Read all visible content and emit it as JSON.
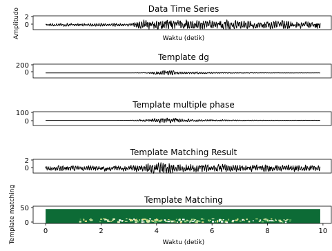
{
  "chart_data": [
    {
      "type": "line",
      "title": "Data Time Series",
      "xlabel": "Waktu (detik)",
      "ylabel": "Amplitudo",
      "yticks": [
        "2",
        "0"
      ],
      "ylim": [
        -1.2,
        2.2
      ],
      "xlim": [
        -0.45,
        10.3
      ],
      "series": [
        {
          "x_start": 0,
          "x_end": 9.9,
          "envelope": [
            0.2,
            0.25,
            0.28,
            0.26,
            0.22,
            0.24,
            0.26,
            0.3,
            0.32,
            0.28,
            0.26,
            0.34,
            0.85,
            0.95,
            1.0,
            0.92,
            0.9,
            0.95,
            0.96,
            0.9,
            0.86,
            0.8,
            0.84,
            0.86,
            0.82,
            0.78,
            0.8,
            0.78,
            0.75,
            0.74,
            0.76,
            0.72,
            0.7,
            0.7,
            0.68,
            0.66
          ]
        }
      ]
    },
    {
      "type": "line",
      "title": "Template dg",
      "xlabel": "",
      "ylabel": "",
      "yticks": [
        "200",
        "0"
      ],
      "ylim": [
        -120,
        210
      ],
      "xlim": [
        -0.45,
        10.3
      ],
      "series": [
        {
          "x_start": 0,
          "x_end": 9.9,
          "envelope": [
            0.0,
            0.0,
            0.0,
            0.0,
            0.0,
            0.0,
            0.0,
            0.0,
            0.0,
            0.0,
            0.01,
            0.02,
            0.08,
            0.1,
            0.6,
            1.0,
            0.85,
            0.45,
            0.4,
            0.35,
            0.3,
            0.26,
            0.2,
            0.18,
            0.14,
            0.12,
            0.1,
            0.09,
            0.08,
            0.07,
            0.06,
            0.05,
            0.05,
            0.04,
            0.03,
            0.03
          ]
        }
      ]
    },
    {
      "type": "line",
      "title": "Template multiple phase",
      "xlabel": "",
      "ylabel": "",
      "yticks": [
        "100",
        "0"
      ],
      "ylim": [
        -65,
        110
      ],
      "xlim": [
        -0.45,
        10.3
      ],
      "series": [
        {
          "x_start": 0,
          "x_end": 9.9,
          "envelope": [
            0.0,
            0.0,
            0.0,
            0.0,
            0.0,
            0.0,
            0.0,
            0.0,
            0.0,
            0.0,
            0.04,
            0.1,
            0.3,
            0.5,
            0.75,
            0.9,
            1.0,
            0.7,
            0.5,
            0.45,
            0.4,
            0.3,
            0.28,
            0.22,
            0.18,
            0.15,
            0.12,
            0.1,
            0.09,
            0.08,
            0.07,
            0.06,
            0.05,
            0.05,
            0.04,
            0.04
          ]
        }
      ]
    },
    {
      "type": "line",
      "title": "Template Matching Result",
      "xlabel": "",
      "ylabel": "",
      "yticks": [
        "2",
        "0"
      ],
      "ylim": [
        -1.2,
        2.2
      ],
      "xlim": [
        -0.45,
        10.3
      ],
      "series": [
        {
          "x_start": 0,
          "x_end": 9.9,
          "envelope": [
            0.4,
            0.45,
            0.5,
            0.48,
            0.46,
            0.5,
            0.52,
            0.5,
            0.55,
            0.52,
            0.55,
            0.6,
            0.75,
            0.85,
            0.95,
            0.9,
            1.0,
            0.85,
            0.75,
            0.8,
            0.72,
            0.7,
            0.74,
            0.7,
            0.68,
            0.7,
            0.66,
            0.64,
            0.68,
            0.65,
            0.62,
            0.6,
            0.62,
            0.58,
            0.56,
            0.55
          ]
        }
      ]
    },
    {
      "type": "heatmap",
      "title": "Template Matching",
      "xlabel": "Waktu (detik)",
      "ylabel": "Template matching",
      "yticks": [
        "50",
        "0"
      ],
      "ylim": [
        0,
        60
      ],
      "xlim": [
        -0.45,
        10.3
      ],
      "xticks": [
        "0",
        "2",
        "4",
        "6",
        "8",
        "10"
      ],
      "x_range": [
        0,
        9.9
      ],
      "y_range": [
        0,
        50
      ],
      "base_color": "#0d6b36"
    }
  ]
}
